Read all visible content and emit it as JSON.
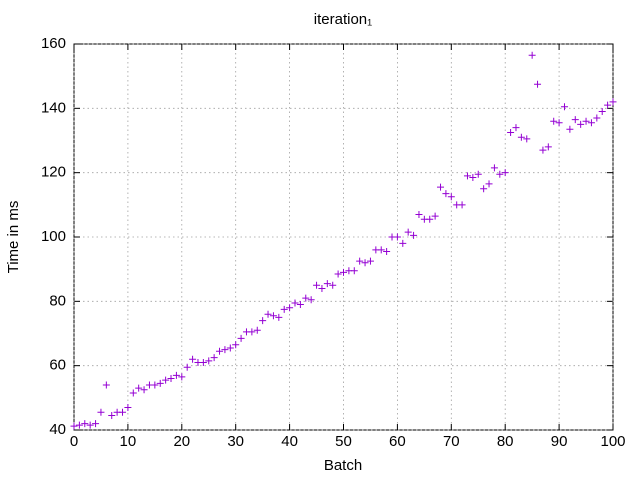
{
  "chart_data": {
    "type": "scatter",
    "title": "iteration₁",
    "x_label": "Batch",
    "y_label": "Time in ms",
    "color": "#9400d3",
    "marker": "+",
    "grid": true,
    "xlim": [
      0,
      100
    ],
    "xticks": [
      0,
      10,
      20,
      30,
      40,
      50,
      60,
      70,
      80,
      90,
      100
    ],
    "ylim": [
      40,
      160
    ],
    "yticks": [
      40,
      60,
      80,
      100,
      120,
      140,
      160
    ],
    "x": [
      0,
      1,
      2,
      3,
      4,
      5,
      6,
      7,
      8,
      9,
      10,
      11,
      12,
      13,
      14,
      15,
      16,
      17,
      18,
      19,
      20,
      21,
      22,
      23,
      24,
      25,
      26,
      27,
      28,
      29,
      30,
      31,
      32,
      33,
      34,
      35,
      36,
      37,
      38,
      39,
      40,
      41,
      42,
      43,
      44,
      45,
      46,
      47,
      48,
      49,
      50,
      51,
      52,
      53,
      54,
      55,
      56,
      57,
      58,
      59,
      60,
      61,
      62,
      63,
      64,
      65,
      66,
      67,
      68,
      69,
      70,
      71,
      72,
      73,
      74,
      75,
      76,
      77,
      78,
      79,
      80,
      81,
      82,
      83,
      84,
      85,
      86,
      87,
      88,
      89,
      90,
      91,
      92,
      93,
      94,
      95,
      96,
      97,
      98,
      99,
      100
    ],
    "values": [
      41.2,
      41.5,
      42,
      41.5,
      42,
      45.5,
      54,
      44.5,
      45.5,
      45.5,
      47,
      51.5,
      53,
      52.5,
      54,
      54,
      54.5,
      55.5,
      56,
      57,
      56.5,
      59.5,
      62,
      61,
      61,
      61.5,
      62.5,
      64.5,
      65,
      65.5,
      66.5,
      68.5,
      70.5,
      70.5,
      71,
      74,
      76,
      75.5,
      75,
      77.5,
      78,
      79.5,
      79,
      81,
      80.5,
      85,
      84,
      85.5,
      85,
      88.5,
      89,
      89.5,
      89.5,
      92.5,
      92,
      92.5,
      96,
      96,
      95.5,
      100,
      100,
      98,
      101.5,
      100.5,
      107,
      105.5,
      105.5,
      106.5,
      115.5,
      113.5,
      112.5,
      110,
      110,
      119,
      118.5,
      119.5,
      115,
      116.5,
      121.5,
      119.5,
      120,
      132.5,
      134,
      131,
      130.5,
      156.5,
      147.5,
      127,
      128,
      136,
      135.5,
      140.5,
      133.5,
      136.5,
      135,
      136,
      135.5,
      137,
      139,
      141,
      142
    ]
  }
}
